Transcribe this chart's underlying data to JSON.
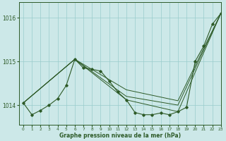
{
  "title": "Graphe pression niveau de la mer (hPa)",
  "bg_color": "#cce8e8",
  "grid_color": "#99cccc",
  "line_color": "#2d5a27",
  "xlim": [
    -0.5,
    23
  ],
  "ylim": [
    1013.55,
    1016.35
  ],
  "yticks": [
    1014,
    1015,
    1016
  ],
  "xticks": [
    0,
    1,
    2,
    3,
    4,
    5,
    6,
    7,
    8,
    9,
    10,
    11,
    12,
    13,
    14,
    15,
    16,
    17,
    18,
    19,
    20,
    21,
    22,
    23
  ],
  "series_main": {
    "x": [
      0,
      1,
      2,
      3,
      4,
      5,
      6,
      7,
      8,
      9,
      10,
      11,
      12,
      13,
      14,
      15,
      16,
      17,
      18,
      19,
      20,
      21,
      22,
      23
    ],
    "y": [
      1014.05,
      1013.78,
      1013.88,
      1014.0,
      1014.15,
      1014.45,
      1015.05,
      1014.85,
      1014.82,
      1014.78,
      1014.55,
      1014.3,
      1014.12,
      1013.83,
      1013.78,
      1013.78,
      1013.82,
      1013.78,
      1013.85,
      1013.95,
      1015.0,
      1015.35,
      1015.85,
      1016.1
    ]
  },
  "line_straight1": [
    [
      0,
      1014.05
    ],
    [
      23,
      1016.1
    ]
  ],
  "line_straight2": [
    [
      0,
      1014.05
    ],
    [
      23,
      1016.1
    ]
  ],
  "line_fan": [
    [
      [
        0,
        1014.05
      ],
      [
        6,
        1015.05
      ],
      [
        12,
        1014.12
      ],
      [
        18,
        1013.85
      ],
      [
        23,
        1016.1
      ]
    ],
    [
      [
        0,
        1014.05
      ],
      [
        6,
        1015.05
      ],
      [
        12,
        1014.35
      ],
      [
        18,
        1014.1
      ],
      [
        23,
        1016.1
      ]
    ],
    [
      [
        0,
        1014.05
      ],
      [
        6,
        1015.05
      ],
      [
        12,
        1014.2
      ],
      [
        18,
        1014.0
      ],
      [
        23,
        1016.1
      ]
    ]
  ]
}
